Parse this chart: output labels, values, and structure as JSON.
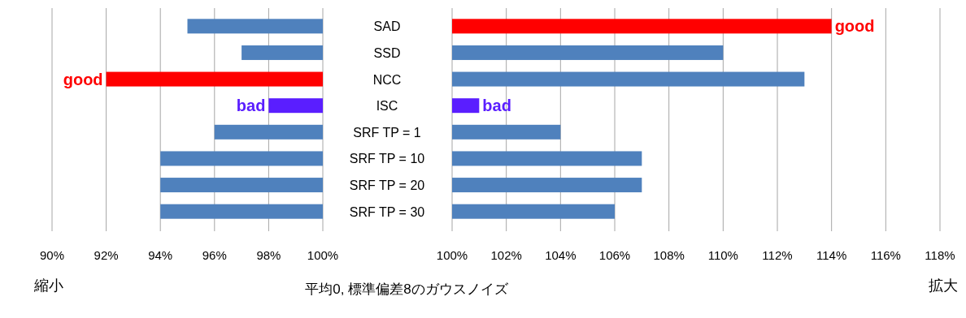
{
  "chart_data": [
    {
      "type": "bar",
      "orientation": "horizontal",
      "categories": [
        "SAD",
        "SSD",
        "NCC",
        "ISC",
        "SRF TP = 1",
        "SRF TP = 10",
        "SRF TP = 20",
        "SRF TP = 30"
      ],
      "base": [
        100,
        100,
        100,
        100,
        100,
        100,
        100,
        100
      ],
      "values": [
        -5,
        -3,
        -8,
        -2,
        -4,
        -6,
        -6,
        -6
      ],
      "colors": [
        "#4f81bd",
        "#4f81bd",
        "#ff0000",
        "#5a1eff",
        "#4f81bd",
        "#4f81bd",
        "#4f81bd",
        "#4f81bd"
      ],
      "xlim": [
        90,
        100
      ],
      "xticks": [
        {
          "value": 90,
          "label": "90%"
        },
        {
          "value": 92,
          "label": "92%"
        },
        {
          "value": 94,
          "label": "94%"
        },
        {
          "value": 96,
          "label": "96%"
        },
        {
          "value": 98,
          "label": "98%"
        },
        {
          "value": 100,
          "label": "100%"
        }
      ],
      "grid": "x",
      "tick_labels": "x",
      "xlabel": "縮小",
      "annotations": [
        {
          "text": "good",
          "x": 92,
          "y": "NCC"
        },
        {
          "text": "bad",
          "x": 98,
          "y": "ISC"
        },
        "平均0, 標準偏差8のガウスノイズ"
      ]
    },
    {
      "type": "bar",
      "orientation": "horizontal",
      "categories": [
        "SAD",
        "SSD",
        "NCC",
        "ISC",
        "SRF TP = 1",
        "SRF TP = 10",
        "SRF TP = 20",
        "SRF TP = 30"
      ],
      "base": [
        100,
        100,
        100,
        100,
        100,
        100,
        100,
        100
      ],
      "values": [
        14,
        10,
        13,
        1,
        4,
        7,
        7,
        6
      ],
      "colors": [
        "#ff0000",
        "#4f81bd",
        "#4f81bd",
        "#5a1eff",
        "#4f81bd",
        "#4f81bd",
        "#4f81bd",
        "#4f81bd"
      ],
      "xlim": [
        100,
        118
      ],
      "xticks": [
        {
          "value": 100,
          "label": "100%"
        },
        {
          "value": 102,
          "label": "102%"
        },
        {
          "value": 104,
          "label": "104%"
        },
        {
          "value": 106,
          "label": "106%"
        },
        {
          "value": 108,
          "label": "108%"
        },
        {
          "value": 110,
          "label": "110%"
        },
        {
          "value": 112,
          "label": "112%"
        },
        {
          "value": 114,
          "label": "114%"
        },
        {
          "value": 116,
          "label": "116%"
        },
        {
          "value": 118,
          "label": "118%"
        }
      ],
      "grid": "x",
      "xlabel": "拡大",
      "annotations": [
        {
          "text": "good",
          "x": 114,
          "y": "SAD"
        },
        {
          "text": "bad",
          "x": 101,
          "y": "ISC"
        }
      ]
    }
  ]
}
